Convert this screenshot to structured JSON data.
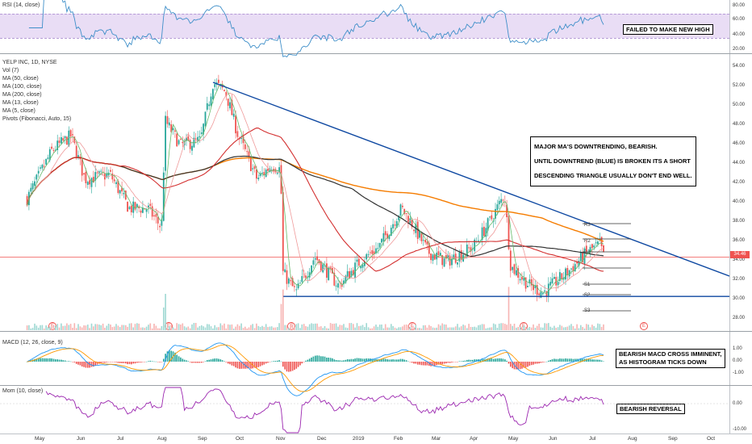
{
  "colors": {
    "rsi": "#3f8fc9",
    "rsi_band": "#e9ddf5",
    "up": "#26a69a",
    "down": "#ef5350",
    "trend": "#0d47a1",
    "ma50": "#d32f2f",
    "ma100": "#333333",
    "ma200": "#f57c00",
    "ma13": "#ef9a9a",
    "ma5": "#66bb6a",
    "macd": "#2196f3",
    "signal": "#ff9800",
    "mom": "#9c27b0"
  },
  "rsi_pane": {
    "title": "RSI (14, close)",
    "ticks": [
      "80.00",
      "60.00",
      "40.00",
      "20.00"
    ],
    "annotation": "FAILED TO MAKE NEW HIGH"
  },
  "main_pane": {
    "legend": [
      "YELP INC, 1D, NYSE",
      "Vol (7)",
      "MA (50, close)",
      "MA (100, close)",
      "MA (200, close)",
      "MA (13, close)",
      "MA (5, close)",
      "Pivots (Fibonacci, Auto, 15)"
    ],
    "ticks": [
      "54.00",
      "52.00",
      "50.00",
      "48.00",
      "46.00",
      "44.00",
      "42.00",
      "40.00",
      "38.00",
      "36.00",
      "34.00",
      "32.00",
      "30.00",
      "28.00"
    ],
    "last_price": "34.46",
    "annotation": [
      "MAJOR MA'S DOWNTRENDING, BEARISH.",
      "UNTIL DOWNTREND (BLUE) IS BROKEN ITS A SHORT",
      "DESCENDING TRIANGLE USUALLY DON'T END WELL."
    ],
    "pivots": [
      "R3",
      "R2",
      "R1",
      "S1",
      "S2",
      "S3"
    ],
    "earnings": [
      "E",
      "E",
      "E",
      "E",
      "E",
      "E"
    ]
  },
  "macd_pane": {
    "title": "MACD (12, 26, close, 9)",
    "ticks": [
      "1.00",
      "0.00",
      "-1.00"
    ],
    "annotation": [
      "BEARISH MACD CROSS IMMINENT,",
      "AS HISTOGRAM TICKS DOWN"
    ]
  },
  "mom_pane": {
    "title": "Mom (10, close)",
    "ticks": [
      "0.00",
      "-10.00"
    ],
    "annotation": "BEARISH REVERSAL"
  },
  "time_axis": [
    "May",
    "Jun",
    "Jul",
    "Aug",
    "Sep",
    "Oct",
    "Nov",
    "Dec",
    "2019",
    "Feb",
    "Mar",
    "Apr",
    "May",
    "Jun",
    "Jul",
    "Aug",
    "Sep",
    "Oct"
  ],
  "chart_data": {
    "type": "candlestick",
    "title": "YELP INC, 1D, NYSE",
    "x_range": [
      "2018-04",
      "2019-10"
    ],
    "ylim": [
      27,
      55
    ],
    "close_path": [
      {
        "x": "2018-04-20",
        "y": 40.5
      },
      {
        "x": "2018-05-10",
        "y": 45.5
      },
      {
        "x": "2018-05-25",
        "y": 47.0
      },
      {
        "x": "2018-06-05",
        "y": 42.5
      },
      {
        "x": "2018-06-25",
        "y": 43.0
      },
      {
        "x": "2018-07-10",
        "y": 39.5
      },
      {
        "x": "2018-07-25",
        "y": 39.5
      },
      {
        "x": "2018-08-05",
        "y": 37.5
      },
      {
        "x": "2018-08-08",
        "y": 48.5
      },
      {
        "x": "2018-08-20",
        "y": 46.0
      },
      {
        "x": "2018-09-05",
        "y": 46.5
      },
      {
        "x": "2018-09-15",
        "y": 52.5
      },
      {
        "x": "2018-09-25",
        "y": 51.5
      },
      {
        "x": "2018-10-05",
        "y": 47.0
      },
      {
        "x": "2018-10-20",
        "y": 42.5
      },
      {
        "x": "2018-11-01",
        "y": 44.0
      },
      {
        "x": "2018-11-08",
        "y": 43.5
      },
      {
        "x": "2018-11-09",
        "y": 33.0
      },
      {
        "x": "2018-11-20",
        "y": 30.8
      },
      {
        "x": "2018-12-05",
        "y": 34.5
      },
      {
        "x": "2018-12-24",
        "y": 31.5
      },
      {
        "x": "2019-01-10",
        "y": 34.0
      },
      {
        "x": "2019-01-25",
        "y": 35.5
      },
      {
        "x": "2019-02-12",
        "y": 39.5
      },
      {
        "x": "2019-02-20",
        "y": 38.0
      },
      {
        "x": "2019-03-05",
        "y": 35.0
      },
      {
        "x": "2019-03-20",
        "y": 34.0
      },
      {
        "x": "2019-04-10",
        "y": 35.5
      },
      {
        "x": "2019-04-25",
        "y": 38.5
      },
      {
        "x": "2019-05-05",
        "y": 41.0
      },
      {
        "x": "2019-05-10",
        "y": 33.5
      },
      {
        "x": "2019-05-25",
        "y": 31.5
      },
      {
        "x": "2019-06-05",
        "y": 30.8
      },
      {
        "x": "2019-06-25",
        "y": 33.0
      },
      {
        "x": "2019-07-10",
        "y": 35.0
      },
      {
        "x": "2019-07-20",
        "y": 35.8
      },
      {
        "x": "2019-07-23",
        "y": 34.46
      }
    ],
    "trendlines": [
      {
        "name": "downtrend",
        "from": {
          "x": "2018-09-15",
          "y": 52.5
        },
        "to": {
          "x": "2019-10-31",
          "y": 32.5
        }
      },
      {
        "name": "support",
        "from": {
          "x": "2018-11-10",
          "y": 30.4
        },
        "to": {
          "x": "2019-10-31",
          "y": 30.4
        }
      }
    ]
  }
}
